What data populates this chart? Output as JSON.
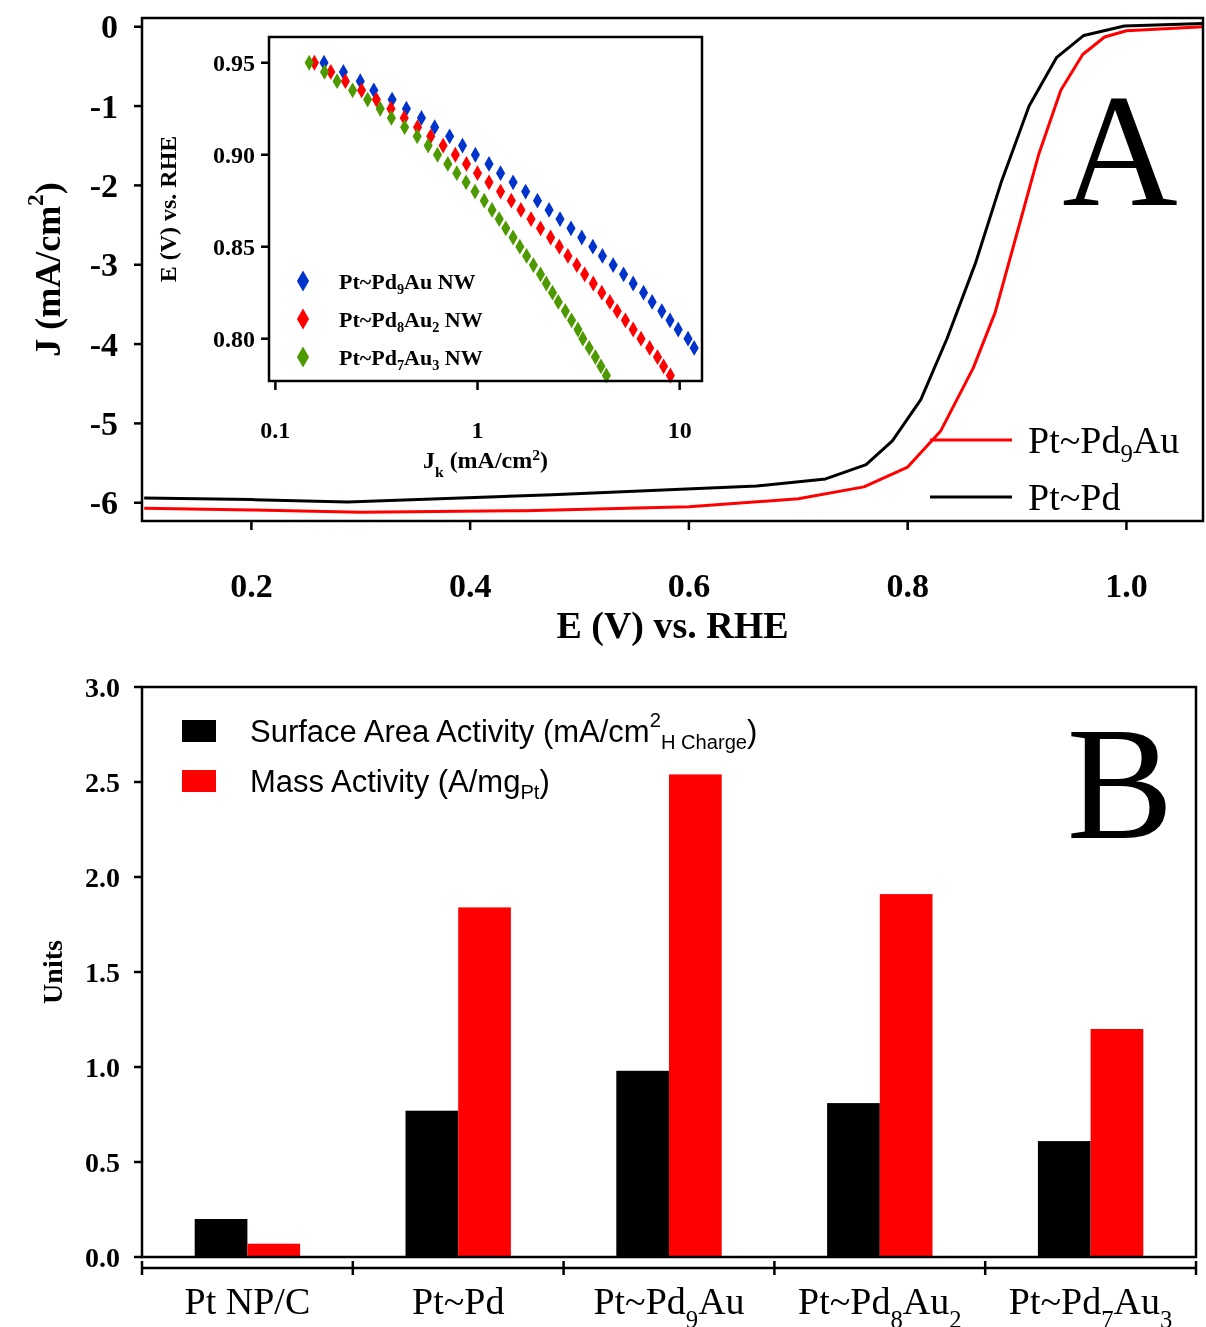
{
  "chart_data": [
    {
      "type": "line",
      "xlabel": "E (V) vs. RHE",
      "ylabel": "J (mA/cm$^{2}$)",
      "xlim": [
        0.1,
        1.07
      ],
      "ylim": [
        -6.23,
        0.11
      ],
      "xticks": [
        0.2,
        0.4,
        0.6,
        0.8,
        {
          "value": 1,
          "label": "1.0"
        }
      ],
      "yticks": [
        0,
        -1,
        -2,
        -3,
        -4,
        -5,
        -6
      ],
      "grid": false,
      "legend": "bottom right",
      "annotations": [
        "A"
      ],
      "series": [
        {
          "name": "Pt~Pd$_{9}$Au",
          "color": "#ff0000",
          "x": [
            0.102,
            0.2,
            0.3,
            0.45,
            0.6,
            0.7,
            0.76,
            0.8,
            0.83,
            0.86,
            0.88,
            0.9,
            0.92,
            0.94,
            0.96,
            0.98,
            1.0,
            1.07
          ],
          "values": [
            -6.07,
            -6.09,
            -6.12,
            -6.1,
            -6.05,
            -5.95,
            -5.8,
            -5.55,
            -5.1,
            -4.3,
            -3.6,
            -2.6,
            -1.6,
            -0.8,
            -0.35,
            -0.13,
            -0.05,
            0.0
          ]
        },
        {
          "name": "Pt~Pd",
          "color": "#000000",
          "x": [
            0.102,
            0.2,
            0.288,
            0.475,
            0.662,
            0.725,
            0.762,
            0.786,
            0.812,
            0.836,
            0.862,
            0.886,
            0.911,
            0.936,
            0.961,
            0.998,
            1.07
          ],
          "values": [
            -5.94,
            -5.96,
            -5.99,
            -5.9,
            -5.79,
            -5.7,
            -5.52,
            -5.22,
            -4.7,
            -3.93,
            -2.98,
            -1.94,
            -1.0,
            -0.39,
            -0.11,
            0.01,
            0.04
          ]
        }
      ]
    },
    {
      "type": "scatter",
      "xlabel": "J$_{k}$ (mA/cm$^{2}$)",
      "ylabel": "E (V) vs. RHE",
      "log": "x",
      "marker": "diamond",
      "xlim": [
        0.093,
        12.9
      ],
      "ylim": [
        0.777,
        0.964
      ],
      "xticks": [
        0.1,
        1,
        10
      ],
      "yticks": [
        0.95,
        {
          "value": 0.9,
          "label": "0.90"
        },
        0.85,
        {
          "value": 0.8,
          "label": "0.80"
        }
      ],
      "grid": false,
      "legend": "bottom left",
      "series": [
        {
          "name": "Pt~Pd$_{9}$Au NW",
          "color": "#0033cc",
          "x": [
            0.174,
            0.217,
            0.263,
            0.307,
            0.378,
            0.445,
            0.528,
            0.614,
            0.728,
            0.843,
            0.976,
            1.14,
            1.3,
            1.5,
            1.73,
            1.98,
            2.26,
            2.56,
            2.9,
            3.28,
            3.72,
            4.15,
            4.69,
            5.28,
            5.89,
            6.63,
            7.31,
            8.16,
            8.96,
            9.84,
            11.0,
            11.8
          ],
          "values": [
            0.95,
            0.945,
            0.94,
            0.935,
            0.93,
            0.925,
            0.92,
            0.915,
            0.91,
            0.905,
            0.9,
            0.895,
            0.89,
            0.885,
            0.88,
            0.875,
            0.87,
            0.865,
            0.86,
            0.855,
            0.85,
            0.845,
            0.84,
            0.835,
            0.83,
            0.825,
            0.82,
            0.815,
            0.81,
            0.805,
            0.8,
            0.795
          ]
        },
        {
          "name": "Pt~Pd$_{8}$Au$_{2}$ NW",
          "color": "#ff0000",
          "x": [
            0.156,
            0.188,
            0.222,
            0.267,
            0.316,
            0.373,
            0.434,
            0.505,
            0.587,
            0.676,
            0.777,
            0.882,
            1.0,
            1.14,
            1.3,
            1.47,
            1.64,
            1.84,
            2.05,
            2.3,
            2.54,
            2.8,
            3.1,
            3.39,
            3.74,
            4.12,
            4.52,
            4.91,
            5.39,
            5.89,
            6.44,
            7.11,
            7.77,
            8.33,
            9.0
          ],
          "values": [
            0.95,
            0.945,
            0.94,
            0.935,
            0.93,
            0.925,
            0.92,
            0.915,
            0.91,
            0.905,
            0.9,
            0.895,
            0.89,
            0.885,
            0.88,
            0.875,
            0.87,
            0.865,
            0.86,
            0.855,
            0.85,
            0.845,
            0.84,
            0.835,
            0.83,
            0.825,
            0.82,
            0.815,
            0.81,
            0.805,
            0.8,
            0.795,
            0.79,
            0.785,
            0.78
          ]
        },
        {
          "name": "Pt~Pd$_{7}$Au$_{3}$ NW",
          "color": "#4d9900",
          "x": [
            0.147,
            0.175,
            0.202,
            0.241,
            0.286,
            0.33,
            0.375,
            0.436,
            0.503,
            0.57,
            0.634,
            0.713,
            0.79,
            0.878,
            0.972,
            1.08,
            1.18,
            1.28,
            1.38,
            1.5,
            1.62,
            1.75,
            1.89,
            2.05,
            2.19,
            2.35,
            2.51,
            2.72,
            2.92,
            3.14,
            3.32,
            3.57,
            3.83,
            4.08,
            4.34
          ],
          "values": [
            0.95,
            0.945,
            0.94,
            0.935,
            0.93,
            0.925,
            0.92,
            0.915,
            0.91,
            0.905,
            0.9,
            0.895,
            0.89,
            0.885,
            0.88,
            0.875,
            0.87,
            0.865,
            0.86,
            0.855,
            0.85,
            0.845,
            0.84,
            0.835,
            0.83,
            0.825,
            0.82,
            0.815,
            0.81,
            0.805,
            0.8,
            0.795,
            0.79,
            0.785,
            0.78
          ]
        }
      ]
    },
    {
      "type": "bar",
      "ylabel": "Units",
      "categories": [
        "Pt NP/C",
        "Pt~Pd",
        "Pt~Pd$_{9}$Au",
        "Pt~Pd$_{8}$Au$_{2}$",
        "Pt~Pd$_{7}$Au$_{3}$"
      ],
      "ylim": [
        0,
        3
      ],
      "yticks": [
        {
          "value": 0,
          "label": "0.0"
        },
        0.5,
        {
          "value": 1,
          "label": "1.0"
        },
        1.5,
        {
          "value": 2,
          "label": "2.0"
        },
        2.5,
        {
          "value": 3,
          "label": "3.0"
        }
      ],
      "grid": false,
      "legend": "top left",
      "annotations": [
        "B"
      ],
      "series": [
        {
          "name": "Surface Area Activity (mA/cm$^{2}$$_{H Charge}$)",
          "color": "#000000",
          "values": [
            0.2,
            0.77,
            0.98,
            0.81,
            0.61
          ]
        },
        {
          "name": "Mass Activity (A/mg$_{Pt}$)",
          "color": "#ff0000",
          "values": [
            0.07,
            1.84,
            2.54,
            1.91,
            1.2
          ]
        }
      ]
    }
  ]
}
